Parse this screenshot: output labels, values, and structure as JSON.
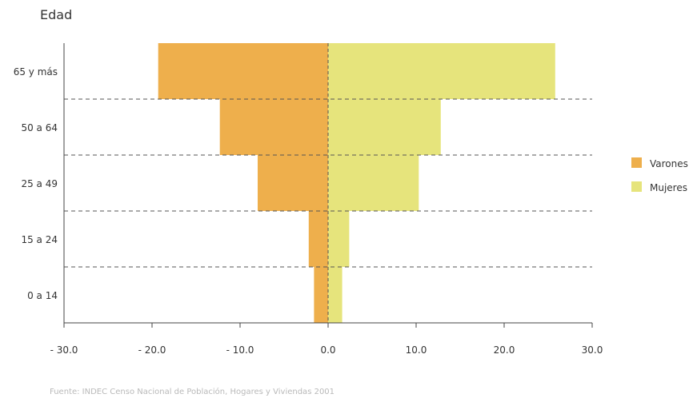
{
  "chart_data": {
    "type": "bar",
    "orientation": "horizontal",
    "ylabel": "Edad",
    "categories": [
      "0 a 14",
      "15 a 24",
      "25 a 49",
      "50 a 64",
      "65 y más"
    ],
    "series": [
      {
        "name": "Varones",
        "values": [
          -1.6,
          -2.2,
          -8.0,
          -12.3,
          -19.3
        ],
        "color": "#eeaf4c"
      },
      {
        "name": "Mujeres",
        "values": [
          1.6,
          2.4,
          10.3,
          12.8,
          25.8
        ],
        "color": "#e6e47c"
      }
    ],
    "xlim": [
      -30,
      30
    ],
    "xticks": [
      -30,
      -20,
      -10,
      0,
      10,
      20,
      30
    ],
    "xtick_labels": [
      "- 30.0",
      "- 20.0",
      "- 10.0",
      "0.0",
      "10.0",
      "20.0",
      "30.0"
    ],
    "legend_position": "right",
    "grid": "dashed horizontal separators",
    "source": "Fuente: INDEC Censo Nacional de Población, Hogares y Viviendas 2001"
  }
}
